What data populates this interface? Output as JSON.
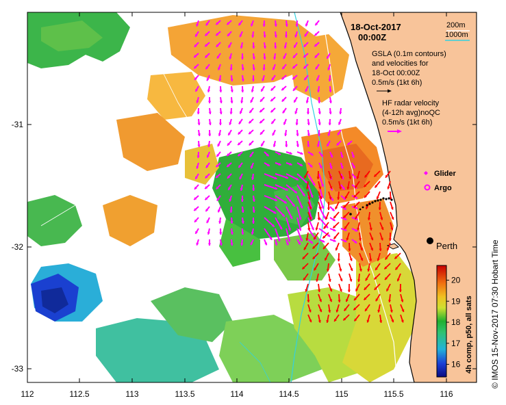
{
  "map": {
    "date_line": "18-Oct-2017",
    "time_line": "00:00Z",
    "isobaths": {
      "label_200": "200m",
      "label_1000": "1000m",
      "color_200": "#ffffff",
      "color_1000": "#33d1e0"
    },
    "gsla_note": [
      "GSLA (0.1m contours)",
      "and velocities for",
      "18-Oct 00:00Z",
      "0.5m/s (1kt 6h)"
    ],
    "hf_note": [
      "HF radar velocity",
      "(4-12h avg)noQC",
      "0.5m/s (1kt 6h)"
    ],
    "legend": {
      "glider": "Glider",
      "argo": "Argo"
    },
    "city": "Perth",
    "credit": "© IMOS 15-Nov-2017 07:30 Hobart Time",
    "colorbar": {
      "title": "4h comp, p50, all sats",
      "ticks": [
        "20",
        "19",
        "18",
        "17",
        "16"
      ],
      "range": [
        15.4,
        20.7
      ]
    },
    "x_axis": {
      "ticks": [
        "112",
        "112.5",
        "113",
        "113.5",
        "114",
        "114.5",
        "115",
        "115.5",
        "116"
      ]
    },
    "y_axis": {
      "ticks": [
        "-31",
        "-32",
        "-33"
      ]
    },
    "colors": {
      "land": "#f8c49a",
      "gsla_arrow": "#ff00ff",
      "hf_arrow": "#ff0000",
      "glider": "#000000"
    }
  }
}
